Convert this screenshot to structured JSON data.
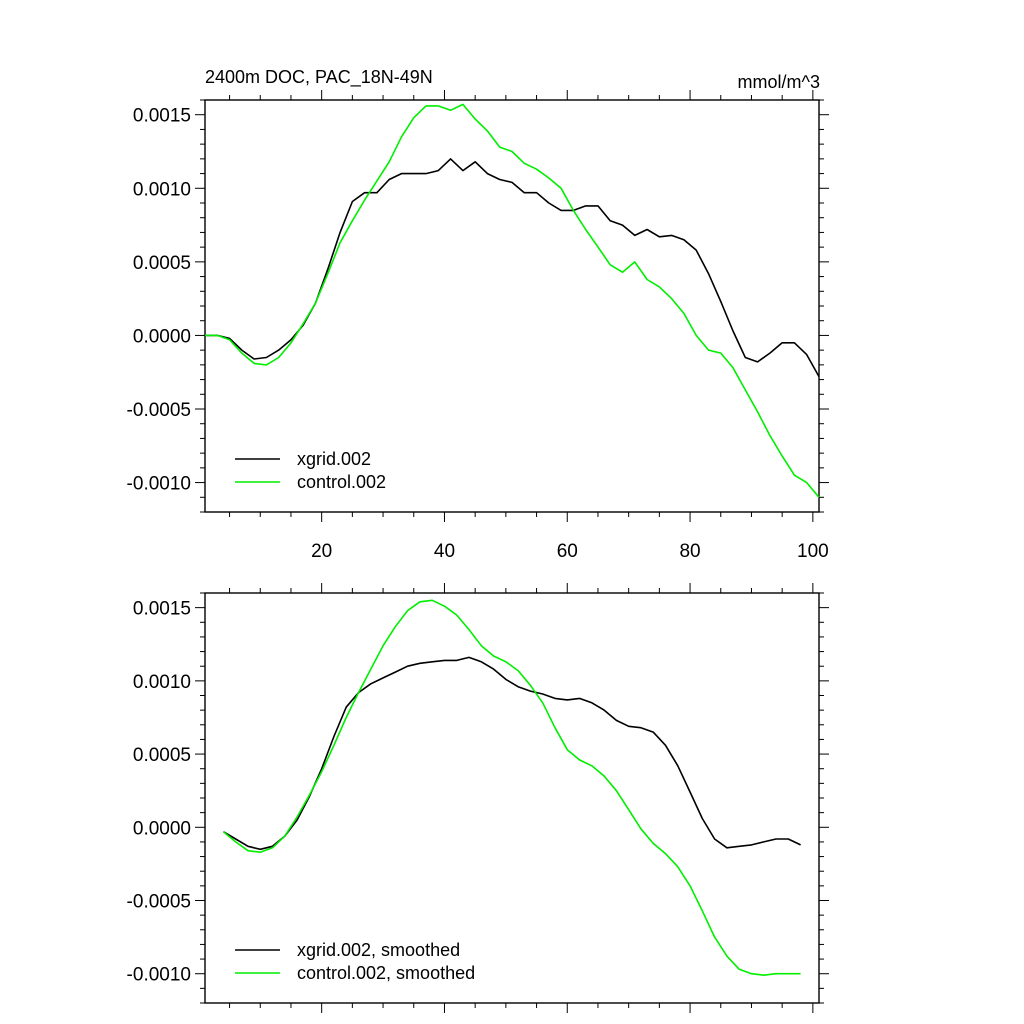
{
  "chart_data": [
    {
      "type": "line",
      "title": "2400m DOC, PAC_18N-49N",
      "units": "mmol/m^3",
      "xlim": [
        1,
        101
      ],
      "ylim": [
        -0.0012,
        0.0016
      ],
      "x_tick_labels": [
        "20",
        "40",
        "60",
        "80",
        "100"
      ],
      "y_tick_labels": [
        "0.0015",
        "0.0010",
        "0.0005",
        "0.0000",
        "-0.0005",
        "-0.0010"
      ],
      "legend_position": "bottom-left",
      "series": [
        {
          "name": "xgrid.002",
          "color": "#000000",
          "x": [
            1,
            3,
            5,
            7,
            9,
            11,
            13,
            15,
            17,
            19,
            21,
            23,
            25,
            27,
            29,
            31,
            33,
            35,
            37,
            39,
            41,
            43,
            45,
            47,
            49,
            51,
            53,
            55,
            57,
            59,
            61,
            63,
            65,
            67,
            69,
            71,
            73,
            75,
            77,
            79,
            81,
            83,
            85,
            87,
            89,
            91,
            93,
            95,
            97,
            99,
            101
          ],
          "values": [
            0.0,
            0.0,
            -2e-05,
            -0.0001,
            -0.00016,
            -0.00015,
            -0.0001,
            -3e-05,
            7e-05,
            0.00022,
            0.00045,
            0.0007,
            0.00091,
            0.00097,
            0.00097,
            0.00106,
            0.0011,
            0.0011,
            0.0011,
            0.00112,
            0.0012,
            0.00112,
            0.00118,
            0.0011,
            0.00106,
            0.00104,
            0.00097,
            0.00097,
            0.0009,
            0.00085,
            0.00085,
            0.00088,
            0.00088,
            0.00078,
            0.00075,
            0.00068,
            0.00072,
            0.00067,
            0.00068,
            0.00065,
            0.00058,
            0.00042,
            0.00023,
            3e-05,
            -0.00015,
            -0.00018,
            -0.00012,
            -5e-05,
            -5e-05,
            -0.00013,
            -0.00028
          ]
        },
        {
          "name": "control.002",
          "color": "#00ee00",
          "x": [
            1,
            3,
            5,
            7,
            9,
            11,
            13,
            15,
            17,
            19,
            21,
            23,
            25,
            27,
            29,
            31,
            33,
            35,
            37,
            39,
            41,
            43,
            45,
            47,
            49,
            51,
            53,
            55,
            57,
            59,
            61,
            63,
            65,
            67,
            69,
            71,
            73,
            75,
            77,
            79,
            81,
            83,
            85,
            87,
            89,
            91,
            93,
            95,
            97,
            99,
            101
          ],
          "values": [
            0.0,
            0.0,
            -3e-05,
            -0.00012,
            -0.00019,
            -0.0002,
            -0.00015,
            -5e-05,
            8e-05,
            0.00022,
            0.00042,
            0.00063,
            0.00078,
            0.00092,
            0.00105,
            0.00118,
            0.00135,
            0.00148,
            0.00156,
            0.00156,
            0.00153,
            0.00157,
            0.00147,
            0.00139,
            0.00128,
            0.00125,
            0.00117,
            0.00113,
            0.00107,
            0.001,
            0.00085,
            0.00072,
            0.0006,
            0.00048,
            0.00043,
            0.0005,
            0.00038,
            0.00033,
            0.00025,
            0.00015,
            0.0,
            -0.0001,
            -0.00012,
            -0.00022,
            -0.00037,
            -0.00052,
            -0.00068,
            -0.00082,
            -0.00095,
            -0.001,
            -0.0011
          ]
        }
      ]
    },
    {
      "type": "line",
      "title": "",
      "units": "",
      "xlim": [
        1,
        101
      ],
      "ylim": [
        -0.0012,
        0.0016
      ],
      "x_tick_labels": [],
      "y_tick_labels": [
        "0.0015",
        "0.0010",
        "0.0005",
        "0.0000",
        "-0.0005",
        "-0.0010"
      ],
      "legend_position": "bottom-left",
      "series": [
        {
          "name": "xgrid.002, smoothed",
          "color": "#000000",
          "x": [
            4,
            6,
            8,
            10,
            12,
            14,
            16,
            18,
            20,
            22,
            24,
            26,
            28,
            30,
            32,
            34,
            36,
            38,
            40,
            42,
            44,
            46,
            48,
            50,
            52,
            54,
            56,
            58,
            60,
            62,
            64,
            66,
            68,
            70,
            72,
            74,
            76,
            78,
            80,
            82,
            84,
            86,
            88,
            90,
            92,
            94,
            96,
            98
          ],
          "values": [
            -3e-05,
            -8e-05,
            -0.00013,
            -0.00015,
            -0.00013,
            -6e-05,
            5e-05,
            0.00021,
            0.0004,
            0.00062,
            0.00082,
            0.00092,
            0.00098,
            0.00102,
            0.00106,
            0.0011,
            0.00112,
            0.00113,
            0.00114,
            0.00114,
            0.00116,
            0.00113,
            0.00108,
            0.00101,
            0.00096,
            0.00093,
            0.00091,
            0.00088,
            0.00087,
            0.00088,
            0.00085,
            0.0008,
            0.00073,
            0.00069,
            0.00068,
            0.00065,
            0.00056,
            0.00042,
            0.00024,
            6e-05,
            -8e-05,
            -0.00014,
            -0.00013,
            -0.00012,
            -0.0001,
            -8e-05,
            -8e-05,
            -0.00012
          ]
        },
        {
          "name": "control.002, smoothed",
          "color": "#00ee00",
          "x": [
            4,
            6,
            8,
            10,
            12,
            14,
            16,
            18,
            20,
            22,
            24,
            26,
            28,
            30,
            32,
            34,
            36,
            38,
            40,
            42,
            44,
            46,
            48,
            50,
            52,
            54,
            56,
            58,
            60,
            62,
            64,
            66,
            68,
            70,
            72,
            74,
            76,
            78,
            80,
            82,
            84,
            86,
            88,
            90,
            92,
            94,
            96,
            98
          ],
          "values": [
            -3e-05,
            -0.0001,
            -0.00016,
            -0.00017,
            -0.00014,
            -6e-05,
            7e-05,
            0.00022,
            0.00038,
            0.00056,
            0.00075,
            0.00092,
            0.00108,
            0.00124,
            0.00137,
            0.00148,
            0.00154,
            0.00155,
            0.00151,
            0.00145,
            0.00135,
            0.00124,
            0.00117,
            0.00113,
            0.00107,
            0.00097,
            0.00085,
            0.00068,
            0.00053,
            0.00046,
            0.00042,
            0.00035,
            0.00025,
            0.00012,
            -1e-05,
            -0.00011,
            -0.00018,
            -0.00027,
            -0.0004,
            -0.00057,
            -0.00075,
            -0.00088,
            -0.00097,
            -0.001,
            -0.00101,
            -0.001,
            -0.001,
            -0.001
          ]
        }
      ]
    }
  ]
}
